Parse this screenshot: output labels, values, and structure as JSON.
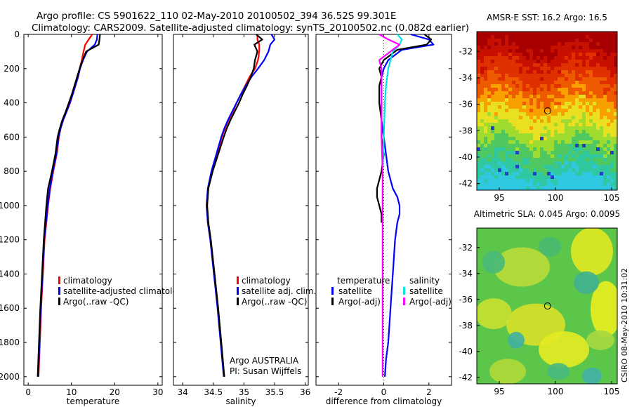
{
  "title_line1": "Argo profile: CS 5901622_110 02-May-2010 20100502_394 36.52S 99.301E",
  "title_line2": "Climatology: CARS2009. Satellite-adjusted climatology: synTS_20100502.nc (0.082d earlier)",
  "side_label": "CSIRO 08-May-2010 10:31:02",
  "colors": {
    "red": "#ff0000",
    "blue": "#0000ff",
    "black": "#000000",
    "cyan": "#00e5e5",
    "magenta": "#ff00ff"
  },
  "chart_data": [
    {
      "type": "line",
      "xlabel": "temperature",
      "ylabel": "",
      "xlim": [
        -1,
        31
      ],
      "ylim": [
        2050,
        0
      ],
      "xticks": [
        0,
        10,
        20,
        30
      ],
      "yticks": [
        0,
        200,
        400,
        600,
        800,
        1000,
        1200,
        1400,
        1600,
        1800,
        2000
      ],
      "legend": {
        "placement": "lower-center",
        "entries": [
          "climatology",
          "satellite-adjusted climatolog",
          "Argo(..raw -QC)"
        ]
      },
      "series": [
        {
          "name": "climatology",
          "color": "red",
          "x": [
            14.8,
            14.0,
            13.2,
            12.8,
            12.4,
            11.9,
            11.5,
            10.9,
            10.3,
            9.7,
            8.9,
            8.1,
            7.5,
            7.1,
            6.6,
            5.8,
            5.1,
            4.6,
            4.2,
            3.8,
            3.4,
            3.0,
            2.7,
            2.4
          ],
          "y": [
            0,
            30,
            60,
            100,
            150,
            200,
            250,
            300,
            350,
            400,
            450,
            500,
            550,
            600,
            700,
            800,
            900,
            1000,
            1100,
            1200,
            1400,
            1600,
            1800,
            2000
          ]
        },
        {
          "name": "satellite-adjusted climatology",
          "color": "blue",
          "x": [
            16.0,
            15.9,
            15.4,
            13.6,
            12.7,
            12.0,
            11.5,
            10.9,
            10.3,
            9.6,
            8.9,
            8.1,
            7.5,
            7.0,
            6.5,
            5.7,
            5.0,
            4.5,
            4.1,
            3.7,
            3.3,
            2.9,
            2.6,
            2.3
          ],
          "y": [
            0,
            30,
            60,
            100,
            150,
            200,
            250,
            300,
            350,
            400,
            450,
            500,
            550,
            600,
            700,
            800,
            900,
            1000,
            1100,
            1200,
            1400,
            1600,
            1800,
            2000
          ]
        },
        {
          "name": "Argo(..raw -QC)",
          "color": "black",
          "x": [
            16.6,
            16.5,
            16.3,
            13.4,
            12.6,
            11.9,
            11.3,
            10.7,
            10.1,
            9.4,
            8.7,
            7.9,
            7.3,
            6.8,
            6.3,
            5.5,
            4.6,
            4.2,
            3.9,
            3.6,
            3.2,
            2.8,
            2.5,
            2.2
          ],
          "y": [
            0,
            30,
            60,
            100,
            150,
            200,
            250,
            300,
            350,
            400,
            450,
            500,
            550,
            600,
            700,
            800,
            900,
            1000,
            1100,
            1200,
            1400,
            1600,
            1800,
            2000
          ]
        }
      ]
    },
    {
      "type": "line",
      "xlabel": "salinity",
      "ylabel": "",
      "xlim": [
        33.85,
        36.05
      ],
      "ylim": [
        2050,
        0
      ],
      "xticks": [
        34,
        34.5,
        35,
        35.5,
        36
      ],
      "yticks": [
        0,
        200,
        400,
        600,
        800,
        1000,
        1200,
        1400,
        1600,
        1800,
        2000
      ],
      "legend": {
        "placement": "lower-center",
        "entries": [
          "climatology",
          "satellite adj. clim.",
          "Argo(..raw -QC)"
        ]
      },
      "annotation": {
        "line1": "Argo AUSTRALIA",
        "line2": "PI: Susan Wijffels"
      },
      "series": [
        {
          "name": "climatology",
          "color": "red",
          "x": [
            35.22,
            35.22,
            35.25,
            35.25,
            35.23,
            35.18,
            35.09,
            35.02,
            34.95,
            34.88,
            34.82,
            34.75,
            34.69,
            34.64,
            34.56,
            34.48,
            34.42,
            34.4,
            34.42,
            34.46,
            34.52,
            34.58,
            34.63,
            34.68
          ],
          "y": [
            0,
            30,
            60,
            100,
            150,
            200,
            250,
            300,
            350,
            400,
            450,
            500,
            550,
            600,
            700,
            800,
            900,
            1000,
            1100,
            1200,
            1400,
            1600,
            1800,
            2000
          ]
        },
        {
          "name": "satellite adj. clim.",
          "color": "blue",
          "x": [
            35.45,
            35.5,
            35.43,
            35.4,
            35.33,
            35.23,
            35.12,
            35.03,
            34.95,
            34.88,
            34.81,
            34.74,
            34.68,
            34.63,
            34.55,
            34.47,
            34.41,
            34.39,
            34.41,
            34.45,
            34.51,
            34.57,
            34.62,
            34.67
          ],
          "y": [
            0,
            30,
            60,
            100,
            150,
            200,
            250,
            300,
            350,
            400,
            450,
            500,
            550,
            600,
            700,
            800,
            900,
            1000,
            1100,
            1200,
            1400,
            1600,
            1800,
            2000
          ]
        },
        {
          "name": "Argo(..raw -QC)",
          "color": "black",
          "x": [
            35.2,
            35.3,
            35.17,
            35.22,
            35.18,
            35.16,
            35.11,
            35.05,
            34.98,
            34.92,
            34.85,
            34.78,
            34.72,
            34.67,
            34.58,
            34.49,
            34.42,
            34.4,
            34.42,
            34.46,
            34.52,
            34.58,
            34.63,
            34.68
          ],
          "y": [
            0,
            30,
            60,
            100,
            150,
            200,
            250,
            300,
            350,
            400,
            450,
            500,
            550,
            600,
            700,
            800,
            900,
            1000,
            1100,
            1200,
            1400,
            1600,
            1800,
            2000
          ]
        }
      ]
    },
    {
      "type": "line",
      "xlabel": "difference from climatology",
      "ylabel": "",
      "xlim": [
        -3.0,
        3.0
      ],
      "ylim": [
        2050,
        0
      ],
      "xticks": [
        -2,
        0,
        2
      ],
      "yticks": [
        0,
        200,
        400,
        600,
        800,
        1000,
        1200,
        1400,
        1600,
        1800,
        2000
      ],
      "legend": {
        "placement": "lower-center",
        "group1_title": "temperature",
        "group1": [
          "satellite",
          "Argo(-adj)"
        ],
        "group2_title": "salinity",
        "group2": [
          "satellite",
          "Argo(-adj)"
        ]
      },
      "series": [
        {
          "name": "temperature satellite",
          "color": "blue",
          "x": [
            1.2,
            2.0,
            2.2,
            0.8,
            0.2,
            0.0,
            -0.1,
            -0.1,
            -0.1,
            -0.1,
            0.0,
            0.1,
            0.2,
            0.3,
            0.4,
            0.6,
            0.7,
            0.7,
            0.6,
            0.5,
            0.4,
            0.3,
            0.2,
            0.1,
            0.05
          ],
          "y": [
            0,
            30,
            60,
            90,
            150,
            200,
            250,
            300,
            400,
            500,
            600,
            700,
            800,
            850,
            900,
            950,
            1000,
            1050,
            1100,
            1200,
            1400,
            1600,
            1800,
            1900,
            2000
          ]
        },
        {
          "name": "temperature Argo(-adj)",
          "color": "black",
          "x": [
            1.8,
            2.1,
            1.9,
            0.6,
            0.0,
            -0.2,
            -0.1,
            -0.2,
            -0.2,
            -0.1,
            -0.1,
            0.0,
            -0.1,
            -0.2,
            -0.3,
            -0.3,
            -0.2,
            -0.1,
            -0.1
          ],
          "y": [
            0,
            30,
            60,
            90,
            150,
            200,
            250,
            300,
            400,
            500,
            600,
            700,
            800,
            850,
            900,
            950,
            1000,
            1050,
            1100
          ]
        },
        {
          "name": "salinity satellite",
          "color": "cyan",
          "x": [
            0.6,
            0.8,
            0.7,
            0.4,
            0.3,
            0.2,
            0.1,
            0.05,
            0.0,
            -0.05,
            -0.05,
            -0.05,
            -0.05,
            -0.05,
            -0.05,
            -0.05,
            -0.05
          ],
          "y": [
            0,
            30,
            60,
            100,
            150,
            200,
            300,
            400,
            600,
            800,
            1000,
            1200,
            1400,
            1600,
            1800,
            1900,
            2000
          ]
        },
        {
          "name": "salinity Argo(-adj)",
          "color": "magenta",
          "x": [
            -0.2,
            0.2,
            0.7,
            0.3,
            -0.2,
            -0.1,
            -0.1,
            -0.1,
            -0.1,
            -0.05,
            -0.05,
            -0.05,
            -0.05,
            -0.05,
            -0.05,
            -0.05,
            -0.05
          ],
          "y": [
            0,
            30,
            60,
            100,
            150,
            200,
            300,
            400,
            600,
            800,
            1000,
            1200,
            1400,
            1600,
            1800,
            1900,
            2000
          ]
        }
      ]
    },
    {
      "type": "heatmap",
      "title": "AMSR-E SST: 16.2 Argo: 16.5",
      "xlim": [
        93,
        105.5
      ],
      "ylim": [
        -42.5,
        -30.5
      ],
      "xticks": [
        95,
        100,
        105
      ],
      "yticks": [
        -32,
        -34,
        -36,
        -38,
        -40,
        -42
      ],
      "marker": {
        "lon": 99.3,
        "lat": -36.5
      }
    },
    {
      "type": "heatmap",
      "title": "Altimetric SLA: 0.045 Argo: 0.0095",
      "xlim": [
        93,
        105.5
      ],
      "ylim": [
        -42.5,
        -30.5
      ],
      "xticks": [
        95,
        100,
        105
      ],
      "yticks": [
        -32,
        -34,
        -36,
        -38,
        -40,
        -42
      ],
      "marker": {
        "lon": 99.3,
        "lat": -36.5
      }
    }
  ]
}
